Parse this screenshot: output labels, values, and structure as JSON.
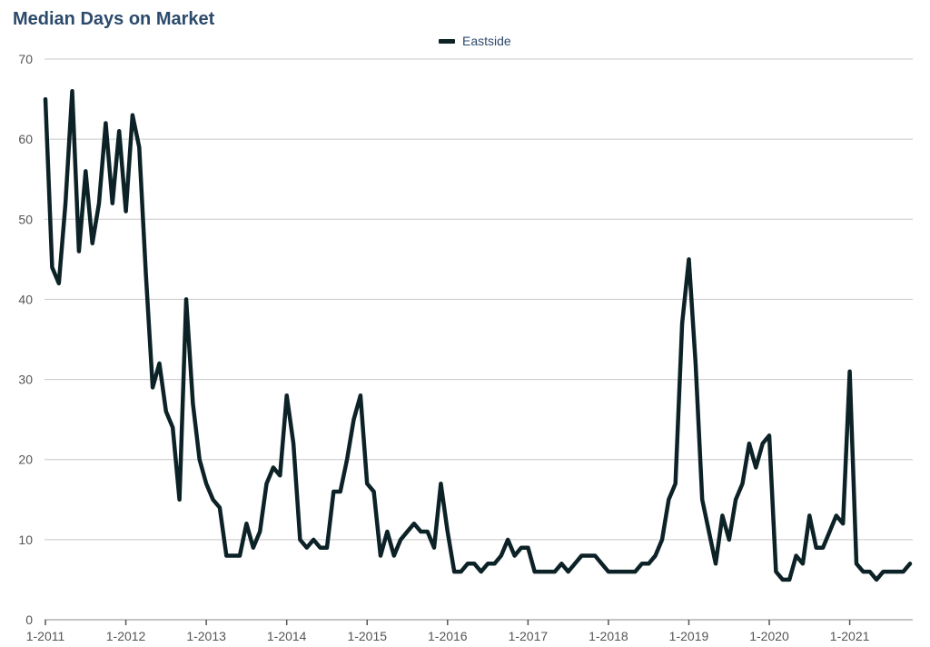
{
  "chart_data": {
    "type": "line",
    "title": "Median Days on Market",
    "xlabel": "",
    "ylabel": "",
    "ylim": [
      0,
      70
    ],
    "yticks": [
      0,
      10,
      20,
      30,
      40,
      50,
      60,
      70
    ],
    "grid": true,
    "legend_position": "top-center",
    "x_tick_labels": [
      "1-2011",
      "1-2012",
      "1-2013",
      "1-2014",
      "1-2015",
      "1-2016",
      "1-2017",
      "1-2018",
      "1-2019",
      "1-2020",
      "1-2021"
    ],
    "x_start": "1-2011",
    "colors": {
      "line": "#0c2226",
      "title": "#2c4a6b",
      "grid": "#c8c8c8"
    },
    "series": [
      {
        "name": "Eastside",
        "values": [
          65,
          44,
          42,
          52,
          66,
          46,
          56,
          47,
          52,
          62,
          52,
          61,
          51,
          63,
          59,
          43,
          29,
          32,
          26,
          24,
          15,
          40,
          27,
          20,
          17,
          15,
          14,
          8,
          8,
          8,
          12,
          9,
          11,
          17,
          19,
          18,
          28,
          22,
          10,
          9,
          10,
          9,
          9,
          16,
          16,
          20,
          25,
          28,
          17,
          16,
          8,
          11,
          8,
          10,
          11,
          12,
          11,
          11,
          9,
          17,
          11,
          6,
          6,
          7,
          7,
          6,
          7,
          7,
          8,
          10,
          8,
          9,
          9,
          6,
          6,
          6,
          6,
          7,
          6,
          7,
          8,
          8,
          8,
          7,
          6,
          6,
          6,
          6,
          6,
          7,
          7,
          8,
          10,
          15,
          17,
          37,
          45,
          32,
          15,
          11,
          7,
          13,
          10,
          15,
          17,
          22,
          19,
          22,
          23,
          6,
          5,
          5,
          8,
          7,
          13,
          9,
          9,
          11,
          13,
          12,
          31,
          7,
          6,
          6,
          5,
          6,
          6,
          6,
          6,
          7
        ]
      }
    ]
  }
}
